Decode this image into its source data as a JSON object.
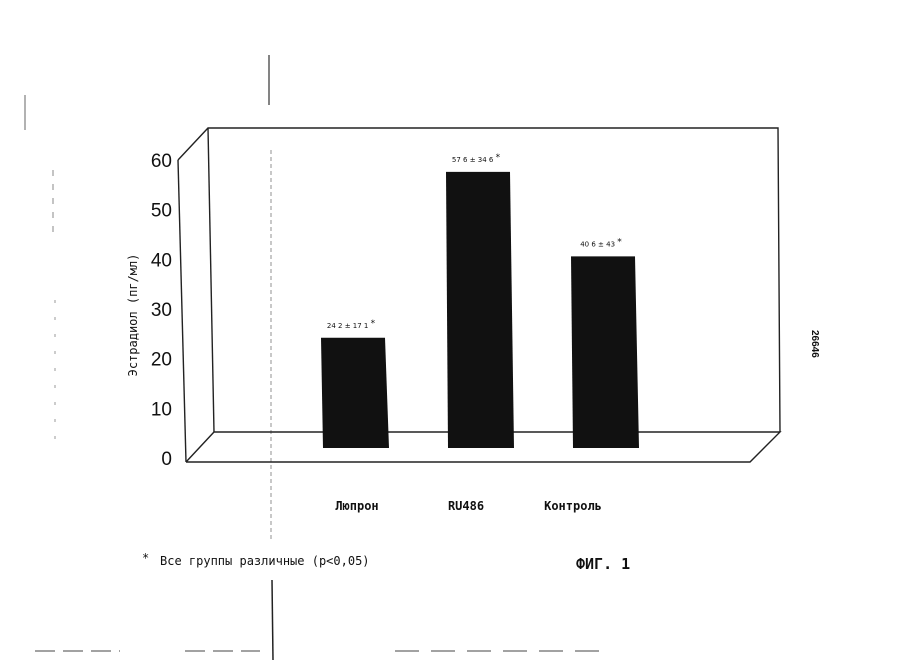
{
  "chart_data": {
    "type": "bar",
    "ylabel": "Эстрадиол (пг/мл)",
    "xlabel": "",
    "ylim": [
      0,
      60
    ],
    "yticks": [
      0,
      10,
      20,
      30,
      40,
      50,
      60
    ],
    "grid": false,
    "categories": [
      "Люпрон",
      "RU486",
      "Контроль"
    ],
    "values": [
      24.2,
      57.6,
      40.6
    ],
    "data_labels": [
      "24 2 ± 17 1",
      "57 6 ± 34 6",
      "40 6 ± 43"
    ],
    "significance_marker": "*",
    "bar_color": "#111111"
  },
  "footnote": {
    "marker": "*",
    "text": "Все группы различные (p<0,05)"
  },
  "figure_label": "ФИГ. 1",
  "side_number": "26646"
}
